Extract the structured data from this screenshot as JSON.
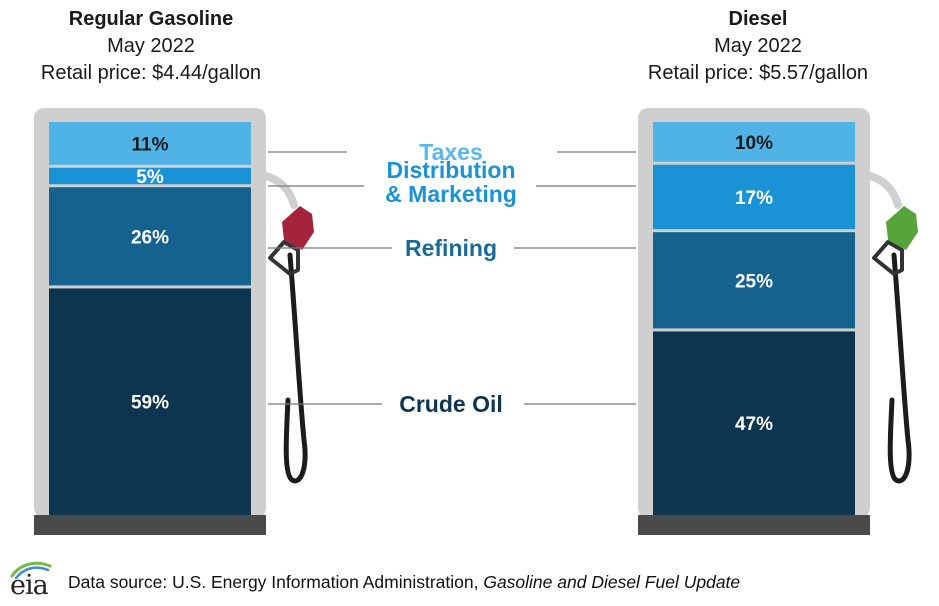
{
  "pumps": [
    {
      "title": "Regular Gasoline",
      "period": "May 2022",
      "price_line": "Retail price: $4.44/gallon",
      "nozzle_color": "#a3243b"
    },
    {
      "title": "Diesel",
      "period": "May 2022",
      "price_line": "Retail price: $5.57/gallon",
      "nozzle_color": "#58a43c"
    }
  ],
  "chart_data": {
    "type": "bar",
    "stacked": true,
    "categories": [
      "Regular Gasoline",
      "Diesel"
    ],
    "series": [
      {
        "name": "Crude Oil",
        "values": [
          59,
          47
        ],
        "color": "#0d3550",
        "label_color": "#0d3550"
      },
      {
        "name": "Refining",
        "values": [
          26,
          25
        ],
        "color": "#15628f",
        "label_color": "#1a6a99"
      },
      {
        "name": "Distribution & Marketing",
        "values": [
          5,
          17
        ],
        "color": "#1a92d6",
        "label_color": "#1a92d6"
      },
      {
        "name": "Taxes",
        "values": [
          11,
          10
        ],
        "color": "#4fb3e6",
        "label_color": "#5ab8e8"
      }
    ],
    "value_labels": [
      [
        "59%",
        "26%",
        "5%",
        "11%"
      ],
      [
        "47%",
        "25%",
        "17%",
        "10%"
      ]
    ],
    "ylim": [
      0,
      100
    ],
    "unit": "%",
    "legend": "center"
  },
  "footer": {
    "logo_text": "eia",
    "source_prefix": "Data source: U.S. Energy Information Administration, ",
    "source_title": "Gasoline and Diesel Fuel Update"
  }
}
